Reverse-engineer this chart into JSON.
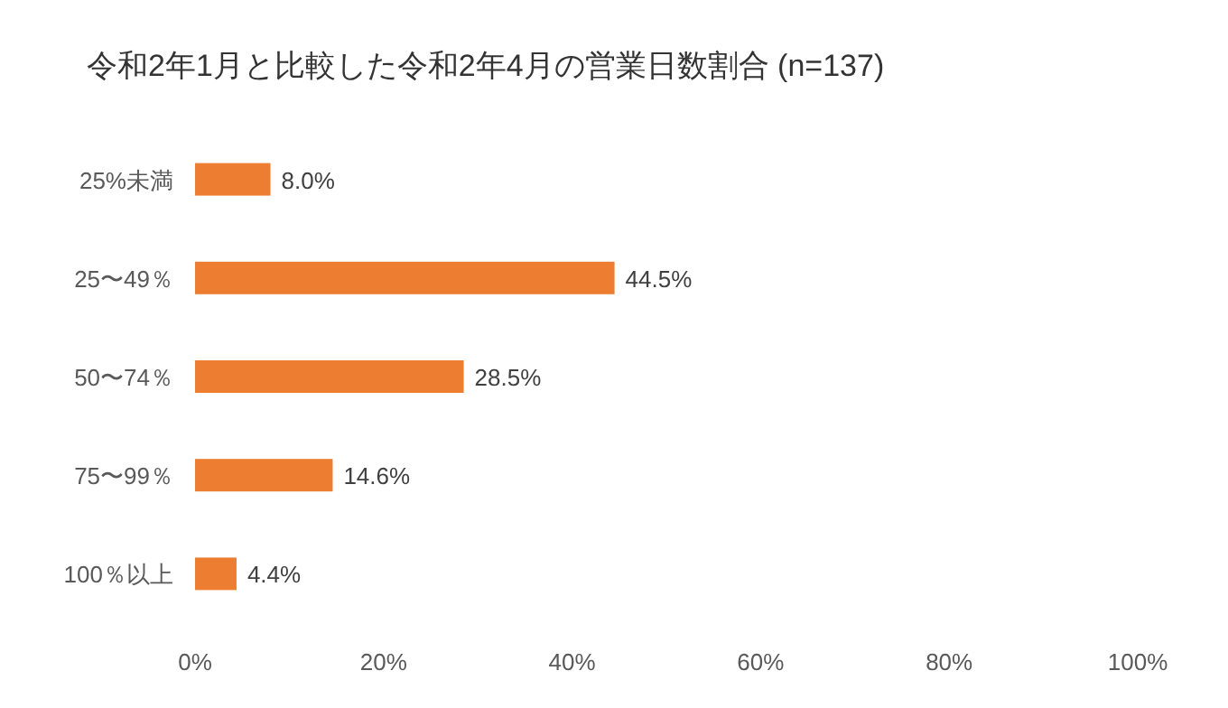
{
  "chart_data": {
    "type": "bar",
    "orientation": "horizontal",
    "title": "令和2年1月と比較した令和2年4月の営業日数割合 (n=137)",
    "categories": [
      "25%未満",
      "25〜49％",
      "50〜74％",
      "75〜99％",
      "100％以上"
    ],
    "values": [
      8.0,
      44.5,
      28.5,
      14.6,
      4.4
    ],
    "value_labels": [
      "8.0%",
      "44.5%",
      "28.5%",
      "14.6%",
      "4.4%"
    ],
    "color": "#ed7d31",
    "xlim": [
      0,
      100
    ],
    "xticks": [
      {
        "value": 0,
        "label": "0%"
      },
      {
        "value": 20,
        "label": "20%"
      },
      {
        "value": 40,
        "label": "40%"
      },
      {
        "value": 60,
        "label": "60%"
      },
      {
        "value": 80,
        "label": "80%"
      },
      {
        "value": 100,
        "label": "100%"
      }
    ],
    "grid": false
  }
}
